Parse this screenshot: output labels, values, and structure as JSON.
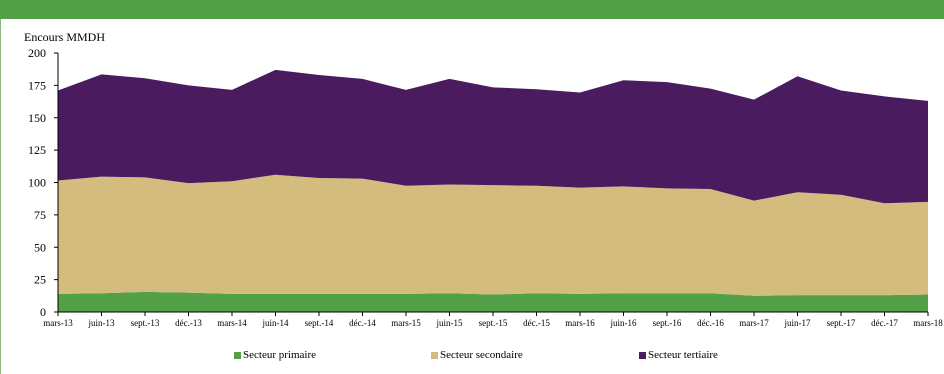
{
  "chart_data": {
    "type": "area",
    "stacked": true,
    "ylabel": "Encours MMDH",
    "xlabel": "",
    "ylim": [
      0,
      200
    ],
    "yticks": [
      0,
      25,
      50,
      75,
      100,
      125,
      150,
      175,
      200
    ],
    "grid": false,
    "legend_position": "bottom",
    "categories": [
      "mars-13",
      "juin-13",
      "sept.-13",
      "déc.-13",
      "mars-14",
      "juin-14",
      "sept.-14",
      "déc.-14",
      "mars-15",
      "juin-15",
      "sept.-15",
      "déc.-15",
      "mars-16",
      "juin-16",
      "sept.-16",
      "déc.-16",
      "mars-17",
      "juin-17",
      "sept.-17",
      "déc.-17",
      "mars-18"
    ],
    "series": [
      {
        "name": "Secteur primaire",
        "color": "#54a047",
        "values": [
          14,
          14.5,
          15.5,
          15,
          14,
          14,
          14,
          14,
          14,
          14.5,
          13.5,
          14.5,
          14,
          14.5,
          14.5,
          14.5,
          12.5,
          13,
          13,
          13,
          13.5
        ]
      },
      {
        "name": "Secteur secondaire",
        "color": "#d3bc7e",
        "values": [
          87.5,
          90,
          88.5,
          84.5,
          87,
          92,
          89.5,
          89,
          83.5,
          84,
          84.5,
          83,
          82,
          82.5,
          81,
          80.5,
          73.5,
          79.5,
          77.5,
          71,
          71.5
        ]
      },
      {
        "name": "Secteur tertiaire",
        "color": "#4a1b5f",
        "values": [
          69.5,
          79,
          76.5,
          75.5,
          70.5,
          81,
          79.5,
          77,
          74,
          81.5,
          75.5,
          74.5,
          73.5,
          82,
          82,
          77.5,
          78,
          89.5,
          80.5,
          82.5,
          78
        ]
      }
    ]
  }
}
